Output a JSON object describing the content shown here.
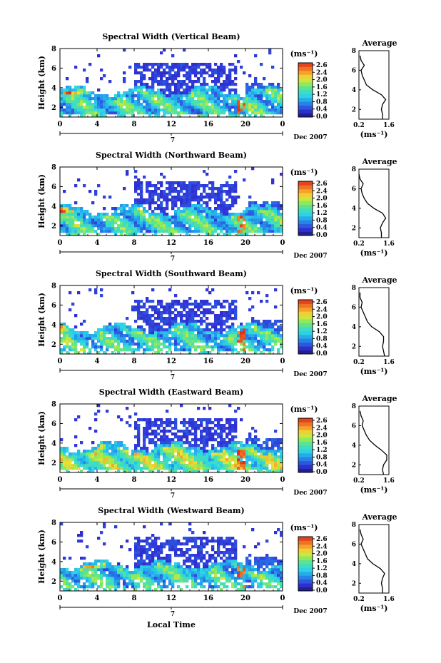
{
  "figure": {
    "date_label": "Dec 2007",
    "day_label": "7",
    "xlabel": "Local Time",
    "ylabel": "Height (km)",
    "colorbar_unit": "(ms⁻¹)",
    "avg_title": "Average",
    "avg_unit": "(ms⁻¹)"
  },
  "colors": {
    "low_blue": "#3a3ad8",
    "cyan": "#2fd9e6",
    "green": "#5fe07a",
    "yellow": "#f2e23a",
    "orange": "#f59a2a",
    "red": "#e03a1e"
  },
  "chart_data": [
    {
      "type": "heatmap",
      "title": "Spectral Width (Vertical Beam)",
      "xlabel": "Local Time",
      "ylabel": "Height (km)",
      "x_ticks": [
        "0",
        "4",
        "8",
        "12",
        "16",
        "20",
        "0"
      ],
      "y_ticks": [
        "2",
        "4",
        "6",
        "8"
      ],
      "xlim": [
        0,
        24
      ],
      "ylim": [
        1,
        8
      ],
      "colorbar": {
        "label": "(ms⁻¹)",
        "ticks": [
          "2.6",
          "2.4",
          "2.0",
          "1.6",
          "1.2",
          "0.8",
          "0.4",
          "0.0"
        ],
        "range": [
          0.0,
          2.8
        ]
      },
      "average_profile": {
        "title": "Average",
        "xlabel": "(ms⁻¹)",
        "x_ticks": [
          "0.2",
          "1.6"
        ],
        "y_ticks": [
          "2",
          "4",
          "6",
          "8"
        ],
        "xlim": [
          0.2,
          1.6
        ],
        "ylim": [
          1,
          8
        ],
        "height": [
          1.0,
          1.5,
          2.0,
          2.5,
          3.0,
          3.5,
          4.0,
          4.5,
          5.0,
          5.5,
          6.0,
          6.5,
          7.0,
          7.5
        ],
        "width": [
          1.3,
          1.3,
          1.25,
          1.3,
          1.45,
          1.25,
          0.85,
          0.55,
          0.45,
          0.35,
          0.3,
          0.45,
          0.3,
          0.25
        ]
      }
    },
    {
      "type": "heatmap",
      "title": "Spectral Width (Northward Beam)",
      "xlabel": "Local Time",
      "ylabel": "Height (km)",
      "x_ticks": [
        "0",
        "4",
        "8",
        "12",
        "16",
        "20",
        "0"
      ],
      "y_ticks": [
        "2",
        "4",
        "6",
        "8"
      ],
      "xlim": [
        0,
        24
      ],
      "ylim": [
        1,
        8
      ],
      "colorbar": {
        "label": "(ms⁻¹)",
        "ticks": [
          "2.6",
          "2.4",
          "2.0",
          "1.6",
          "1.2",
          "0.8",
          "0.4",
          "0.0"
        ],
        "range": [
          0.0,
          2.8
        ]
      },
      "average_profile": {
        "title": "Average",
        "xlabel": "(ms⁻¹)",
        "x_ticks": [
          "0.2",
          "1.6"
        ],
        "y_ticks": [
          "2",
          "4",
          "6",
          "8"
        ],
        "xlim": [
          0.2,
          1.6
        ],
        "ylim": [
          1,
          8
        ],
        "height": [
          1.0,
          1.5,
          2.0,
          2.5,
          3.0,
          3.5,
          4.0,
          4.5,
          5.0,
          5.5,
          6.0,
          6.5,
          7.0,
          7.5
        ],
        "width": [
          1.25,
          1.25,
          1.2,
          1.3,
          1.45,
          1.3,
          0.9,
          0.6,
          0.45,
          0.35,
          0.3,
          0.4,
          0.25,
          0.2
        ]
      }
    },
    {
      "type": "heatmap",
      "title": "Spectral Width (Southward Beam)",
      "xlabel": "Local Time",
      "ylabel": "Height (km)",
      "x_ticks": [
        "0",
        "4",
        "8",
        "12",
        "16",
        "20",
        "0"
      ],
      "y_ticks": [
        "2",
        "4",
        "6",
        "8"
      ],
      "xlim": [
        0,
        24
      ],
      "ylim": [
        1,
        8
      ],
      "colorbar": {
        "label": "(ms⁻¹)",
        "ticks": [
          "2.6",
          "2.4",
          "2.0",
          "1.6",
          "1.2",
          "0.8",
          "0.4",
          "0.0"
        ],
        "range": [
          0.0,
          2.8
        ]
      },
      "average_profile": {
        "title": "Average",
        "xlabel": "(ms⁻¹)",
        "x_ticks": [
          "0.2",
          "1.6"
        ],
        "y_ticks": [
          "2",
          "4",
          "6",
          "8"
        ],
        "xlim": [
          0.2,
          1.6
        ],
        "ylim": [
          1,
          8
        ],
        "height": [
          1.0,
          1.5,
          2.0,
          2.5,
          3.0,
          3.5,
          4.0,
          4.5,
          5.0,
          5.5,
          6.0,
          6.5,
          7.0,
          7.5
        ],
        "width": [
          1.4,
          1.35,
          1.3,
          1.35,
          1.35,
          1.15,
          0.8,
          0.6,
          0.5,
          0.4,
          0.3,
          0.35,
          0.25,
          0.25
        ]
      }
    },
    {
      "type": "heatmap",
      "title": "Spectral Width (Eastward Beam)",
      "xlabel": "Local Time",
      "ylabel": "Height (km)",
      "x_ticks": [
        "0",
        "4",
        "8",
        "12",
        "16",
        "20",
        "0"
      ],
      "y_ticks": [
        "2",
        "4",
        "6",
        "8"
      ],
      "xlim": [
        0,
        24
      ],
      "ylim": [
        1,
        8
      ],
      "colorbar": {
        "label": "(ms⁻¹)",
        "ticks": [
          "2.6",
          "2.4",
          "2.0",
          "1.6",
          "1.2",
          "0.8",
          "0.4",
          "0.0"
        ],
        "range": [
          0.0,
          2.8
        ]
      },
      "average_profile": {
        "title": "Average",
        "xlabel": "(ms⁻¹)",
        "x_ticks": [
          "0.2",
          "1.6"
        ],
        "y_ticks": [
          "2",
          "4",
          "6",
          "8"
        ],
        "xlim": [
          0.2,
          1.6
        ],
        "ylim": [
          1,
          8
        ],
        "height": [
          1.0,
          1.5,
          2.0,
          2.5,
          3.0,
          3.5,
          4.0,
          4.5,
          5.0,
          5.5,
          6.0,
          6.5,
          7.0,
          7.5
        ],
        "width": [
          1.35,
          1.3,
          1.35,
          1.5,
          1.5,
          1.25,
          0.95,
          0.7,
          0.55,
          0.45,
          0.35,
          0.4,
          0.3,
          0.25
        ]
      }
    },
    {
      "type": "heatmap",
      "title": "Spectral Width (Westward Beam)",
      "xlabel": "Local Time",
      "ylabel": "Height (km)",
      "x_ticks": [
        "0",
        "4",
        "8",
        "12",
        "16",
        "20",
        "0"
      ],
      "y_ticks": [
        "2",
        "4",
        "6",
        "8"
      ],
      "xlim": [
        0,
        24
      ],
      "ylim": [
        1,
        8
      ],
      "colorbar": {
        "label": "(ms⁻¹)",
        "ticks": [
          "2.6",
          "2.4",
          "2.0",
          "1.6",
          "1.2",
          "0.8",
          "0.4",
          "0.0"
        ],
        "range": [
          0.0,
          2.8
        ]
      },
      "average_profile": {
        "title": "Average",
        "xlabel": "(ms⁻¹)",
        "x_ticks": [
          "0.2",
          "1.6"
        ],
        "y_ticks": [
          "2",
          "4",
          "6",
          "8"
        ],
        "xlim": [
          0.2,
          1.6
        ],
        "ylim": [
          1,
          8
        ],
        "height": [
          1.0,
          1.5,
          2.0,
          2.5,
          3.0,
          3.5,
          4.0,
          4.5,
          5.0,
          5.5,
          6.0,
          6.5,
          7.0,
          7.5
        ],
        "width": [
          1.3,
          1.3,
          1.25,
          1.3,
          1.4,
          1.2,
          0.85,
          0.6,
          0.5,
          0.4,
          0.3,
          0.4,
          0.3,
          0.25
        ]
      }
    }
  ]
}
